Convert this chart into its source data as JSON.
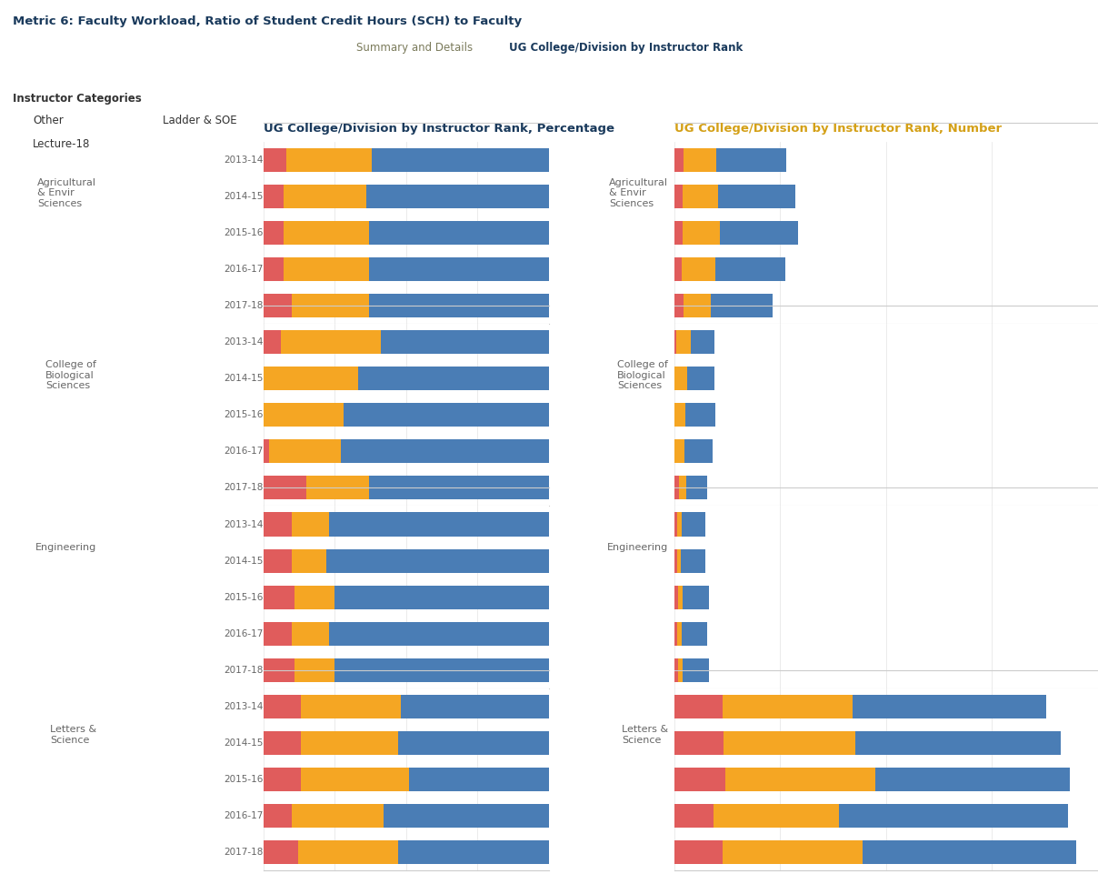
{
  "title": "Metric 6: Faculty Workload, Ratio of Student Credit Hours (SCH) to Faculty",
  "tab1_label": "Summary and Details",
  "tab2_label": "UG College/Division by Instructor Rank",
  "left_chart_title": "UG College/Division by Instructor Rank, Percentage",
  "right_chart_title": "UG College/Division by Instructor Rank, Number",
  "legend_title": "Instructor Categories",
  "colors": {
    "other": "#E05C5C",
    "lecture18": "#F5A623",
    "ladder_soe": "#4A7DB5"
  },
  "tab_active_color": "#D4A017",
  "tab_inactive_color": "#E8D88A",
  "tab_text_active": "#1A3A5C",
  "tab_text_inactive": "#7A7A5A",
  "title_color": "#1A3A5C",
  "chart_title_left_color": "#1A3A5C",
  "chart_title_right_color": "#D4A017",
  "years": [
    "2013-14",
    "2014-15",
    "2015-16",
    "2016-17",
    "2017-18"
  ],
  "colleges": [
    "Agricultural\n& Envir\nSciences",
    "College of\nBiological\nSciences",
    "Engineering",
    "Letters &\nScience"
  ],
  "pct_data": {
    "Agricultural\n& Envir\nSciences": {
      "other": [
        8,
        7,
        7,
        7,
        10
      ],
      "lecture18": [
        30,
        29,
        30,
        30,
        27
      ],
      "ladder_soe": [
        62,
        64,
        63,
        63,
        63
      ]
    },
    "College of\nBiological\nSciences": {
      "other": [
        6,
        0,
        0,
        2,
        15
      ],
      "lecture18": [
        35,
        33,
        28,
        25,
        22
      ],
      "ladder_soe": [
        59,
        67,
        72,
        73,
        63
      ]
    },
    "Engineering": {
      "other": [
        10,
        10,
        11,
        10,
        11
      ],
      "lecture18": [
        13,
        12,
        14,
        13,
        14
      ],
      "ladder_soe": [
        77,
        78,
        75,
        77,
        75
      ]
    },
    "Letters &\nScience": {
      "other": [
        13,
        13,
        13,
        10,
        12
      ],
      "lecture18": [
        35,
        34,
        38,
        32,
        35
      ],
      "ladder_soe": [
        52,
        53,
        49,
        58,
        53
      ]
    }
  },
  "num_data": {
    "Agricultural\n& Envir\nSciences": {
      "other": [
        15,
        14,
        14,
        13,
        16
      ],
      "lecture18": [
        55,
        58,
        61,
        55,
        44
      ],
      "ladder_soe": [
        115,
        128,
        130,
        116,
        103
      ]
    },
    "College of\nBiological\nSciences": {
      "other": [
        4,
        0,
        0,
        1,
        8
      ],
      "lecture18": [
        23,
        22,
        19,
        16,
        12
      ],
      "ladder_soe": [
        39,
        44,
        49,
        47,
        34
      ]
    },
    "Engineering": {
      "other": [
        5,
        5,
        6,
        5,
        6
      ],
      "lecture18": [
        7,
        6,
        8,
        7,
        8
      ],
      "ladder_soe": [
        40,
        40,
        43,
        42,
        43
      ]
    },
    "Letters &\nScience": {
      "other": [
        80,
        82,
        85,
        65,
        80
      ],
      "lecture18": [
        215,
        218,
        248,
        208,
        232
      ],
      "ladder_soe": [
        320,
        338,
        320,
        378,
        352
      ]
    }
  },
  "num_max": 700
}
